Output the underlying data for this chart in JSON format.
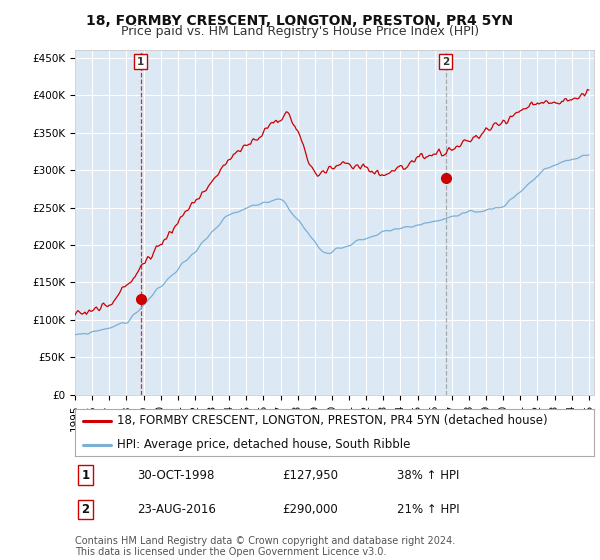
{
  "title": "18, FORMBY CRESCENT, LONGTON, PRESTON, PR4 5YN",
  "subtitle": "Price paid vs. HM Land Registry's House Price Index (HPI)",
  "ylim": [
    0,
    460000
  ],
  "yticks": [
    0,
    50000,
    100000,
    150000,
    200000,
    250000,
    300000,
    350000,
    400000,
    450000
  ],
  "ytick_labels": [
    "£0",
    "£50K",
    "£100K",
    "£150K",
    "£200K",
    "£250K",
    "£300K",
    "£350K",
    "£400K",
    "£450K"
  ],
  "background_color": "#ffffff",
  "plot_bg_color": "#dce9f5",
  "grid_color": "#ffffff",
  "sale_points": [
    {
      "year": 1998.83,
      "price": 127950,
      "label": "1"
    },
    {
      "year": 2016.64,
      "price": 290000,
      "label": "2"
    }
  ],
  "sale_color": "#cc0000",
  "sale2_vline_color": "#aaaaaa",
  "hpi_color": "#7bafd4",
  "sale_line_label": "18, FORMBY CRESCENT, LONGTON, PRESTON, PR4 5YN (detached house)",
  "hpi_line_label": "HPI: Average price, detached house, South Ribble",
  "annotations": [
    {
      "num": "1",
      "date": "30-OCT-1998",
      "price": "£127,950",
      "pct": "38% ↑ HPI"
    },
    {
      "num": "2",
      "date": "23-AUG-2016",
      "price": "£290,000",
      "pct": "21% ↑ HPI"
    }
  ],
  "footnote": "Contains HM Land Registry data © Crown copyright and database right 2024.\nThis data is licensed under the Open Government Licence v3.0.",
  "title_fontsize": 10,
  "subtitle_fontsize": 9,
  "tick_fontsize": 7.5,
  "legend_fontsize": 8.5,
  "annot_fontsize": 8.5,
  "footnote_fontsize": 7
}
